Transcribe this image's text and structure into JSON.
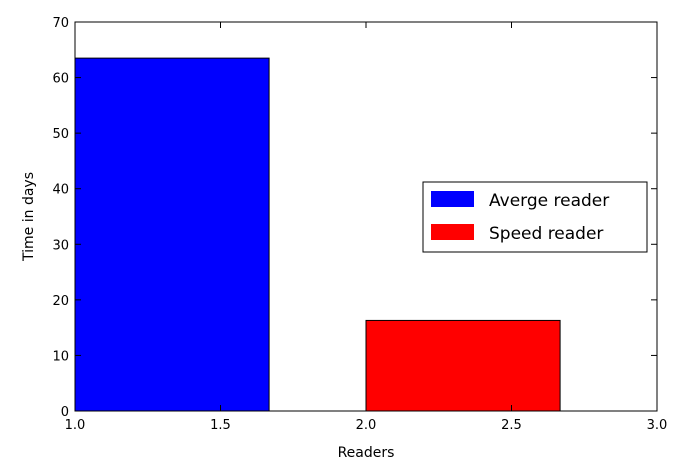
{
  "chart_data": {
    "type": "bar",
    "title": "",
    "xlabel": "Readers",
    "ylabel": "Time in days",
    "xlim": [
      1.0,
      3.0
    ],
    "ylim": [
      0,
      70
    ],
    "xticks": [
      "1.0",
      "1.5",
      "2.0",
      "2.5",
      "3.0"
    ],
    "yticks": [
      "0",
      "10",
      "20",
      "30",
      "40",
      "50",
      "60",
      "70"
    ],
    "bar_width": 0.667,
    "grid": false,
    "legend_position": "center-right",
    "series": [
      {
        "name": "Averge reader",
        "x": 1.0,
        "value": 63.5,
        "color": "#0000ff"
      },
      {
        "name": "Speed reader",
        "x": 2.0,
        "value": 16.3,
        "color": "#ff0000"
      }
    ]
  }
}
